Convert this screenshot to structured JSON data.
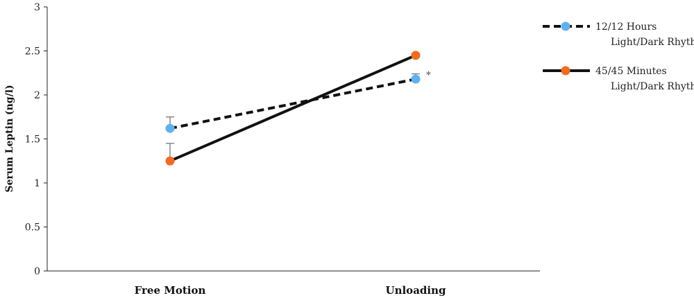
{
  "chart_data": {
    "type": "line",
    "ylabel": "Serum Leptin (ng/l)",
    "xlabel": "",
    "ylim": [
      0,
      3
    ],
    "yticks": [
      0,
      0.5,
      1,
      1.5,
      2,
      2.5,
      3
    ],
    "ytick_labels": [
      "0",
      "0.5",
      "1",
      "1.5",
      "2",
      "2.5",
      "3"
    ],
    "categories": [
      "Free Motion",
      "Unloading"
    ],
    "series": [
      {
        "name_lines": [
          "12/12 Hours",
          "Light/Dark Rhythm"
        ],
        "values": [
          1.62,
          2.18
        ],
        "error_upper": [
          1.75,
          2.24
        ],
        "line_style": "dashed",
        "marker_color": "#5eb1f0"
      },
      {
        "name_lines": [
          "45/45 Minutes",
          "Light/Dark Rhythm"
        ],
        "values": [
          1.25,
          2.45
        ],
        "error_upper": [
          1.45,
          null
        ],
        "line_style": "solid",
        "marker_color": "#f26b21"
      }
    ],
    "annotation": "*",
    "legend_position": "top-right",
    "grid": false
  }
}
